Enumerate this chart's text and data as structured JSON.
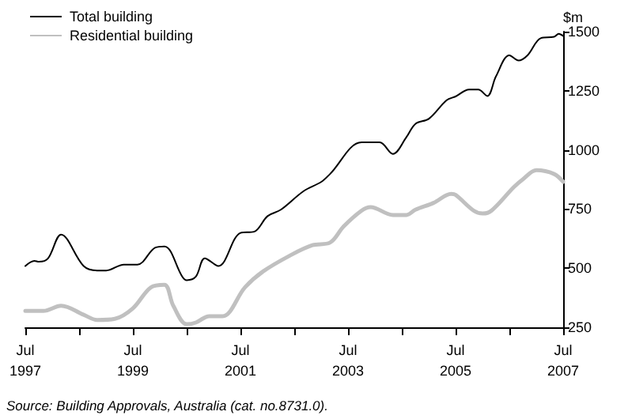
{
  "chart_data": {
    "type": "line",
    "ylabel": "$m",
    "annotations": [
      "Source: Building Approvals, Australia (cat. no.8731.0)."
    ],
    "xlim": [
      "1997-07",
      "2007-07"
    ],
    "xticks": [
      {
        "value": "1997-07",
        "label": "Jul\n1997"
      },
      {
        "value": "1998-07",
        "label": null
      },
      {
        "value": "1999-07",
        "label": "Jul\n1999"
      },
      {
        "value": "2000-07",
        "label": null
      },
      {
        "value": "2001-07",
        "label": "Jul\n2001"
      },
      {
        "value": "2002-07",
        "label": null
      },
      {
        "value": "2003-07",
        "label": "Jul\n2003"
      },
      {
        "value": "2004-07",
        "label": null
      },
      {
        "value": "2005-07",
        "label": "Jul\n2005"
      },
      {
        "value": "2006-07",
        "label": null
      },
      {
        "value": "2007-07",
        "label": "Jul\n2007"
      }
    ],
    "ylim": [
      250,
      1500
    ],
    "yticks": [
      250,
      500,
      750,
      1000,
      1250,
      1500
    ],
    "grid": false,
    "legend": "top left",
    "marker": "none",
    "line_style": "solid",
    "series": [
      {
        "name": "Total building",
        "color": "#000000",
        "x": [
          "1997-07",
          "1997-09",
          "1997-10",
          "1997-12",
          "1998-03",
          "1998-08",
          "1998-11",
          "1999-01",
          "1999-05",
          "1999-08",
          "1999-12",
          "2000-02",
          "2000-06",
          "2000-07",
          "2000-09",
          "2000-11",
          "2001-02",
          "2001-07",
          "2001-10",
          "2002-01",
          "2002-04",
          "2002-09",
          "2003-01",
          "2003-03",
          "2003-10",
          "2004-02",
          "2004-05",
          "2004-08",
          "2004-10",
          "2005-01",
          "2005-05",
          "2005-07",
          "2005-10",
          "2005-12",
          "2006-02",
          "2006-04",
          "2006-07",
          "2006-09",
          "2006-11",
          "2007-02",
          "2007-05",
          "2007-06",
          "2007-07"
        ],
        "values": [
          509,
          531,
          527,
          540,
          642,
          509,
          490,
          490,
          515,
          515,
          587,
          592,
          464,
          449,
          464,
          542,
          509,
          649,
          654,
          720,
          747,
          825,
          865,
          898,
          1032,
          1032,
          983,
          1054,
          1110,
          1132,
          1210,
          1226,
          1255,
          1255,
          1228,
          1311,
          1400,
          1378,
          1400,
          1473,
          1478,
          1491,
          1482
        ]
      },
      {
        "name": "Residential building",
        "color": "#c0c0c0",
        "x": [
          "1997-07",
          "1997-11",
          "1998-03",
          "1998-08",
          "1998-11",
          "1999-03",
          "1999-07",
          "1999-11",
          "2000-02",
          "2000-04",
          "2000-07",
          "2000-09",
          "2000-12",
          "2001-03",
          "2001-08",
          "2001-12",
          "2002-06",
          "2002-11",
          "2003-03",
          "2003-06",
          "2003-10",
          "2003-12",
          "2004-05",
          "2004-08",
          "2004-10",
          "2005-02",
          "2005-06",
          "2005-07",
          "2005-11",
          "2006-01",
          "2006-03",
          "2006-08",
          "2006-10",
          "2007-01",
          "2007-05",
          "2007-07"
        ],
        "values": [
          319,
          319,
          341,
          303,
          281,
          286,
          330,
          419,
          430,
          341,
          263,
          270,
          297,
          297,
          419,
          486,
          553,
          597,
          608,
          676,
          743,
          758,
          725,
          725,
          747,
          776,
          814,
          810,
          743,
          731,
          743,
          843,
          876,
          914,
          898,
          865
        ]
      }
    ]
  }
}
